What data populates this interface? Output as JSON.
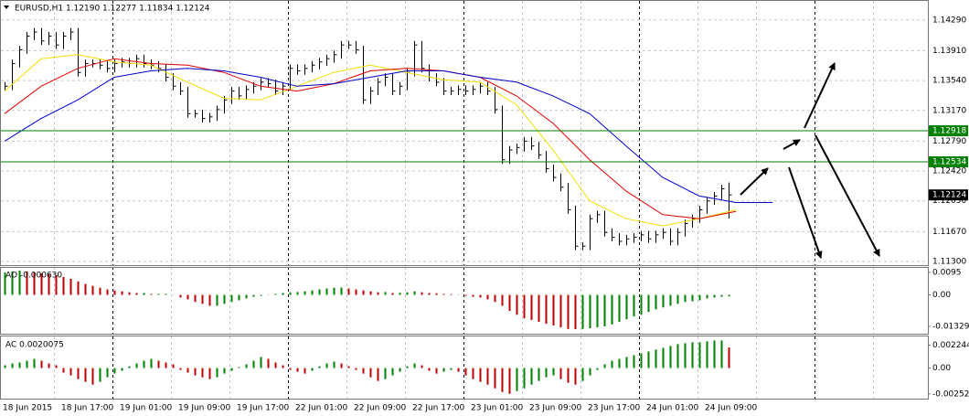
{
  "chart_data": [
    {
      "type": "ohlc",
      "title": "EURUSD,H1  1.12190 1.12277 1.11834 1.12124",
      "color": "#000000",
      "categories": [
        "18 Jun 2015",
        null,
        null,
        null,
        null,
        null,
        null,
        null,
        "18 Jun 17:00",
        null,
        null,
        null,
        null,
        null,
        null,
        null,
        "19 Jun 01:00",
        null,
        null,
        null,
        null,
        null,
        null,
        null,
        "19 Jun 09:00",
        null,
        null,
        null,
        null,
        null,
        null,
        null,
        "19 Jun 17:00",
        null,
        null,
        null,
        null,
        null,
        null,
        null,
        "22 Jun 01:00",
        null,
        null,
        null,
        null,
        null,
        null,
        null,
        "22 Jun 09:00",
        null,
        null,
        null,
        null,
        null,
        null,
        null,
        "22 Jun 17:00",
        null,
        null,
        null,
        null,
        null,
        null,
        null,
        "23 Jun 01:00",
        null,
        null,
        null,
        null,
        null,
        null,
        null,
        "23 Jun 09:00",
        null,
        null,
        null,
        null,
        null,
        null,
        null,
        "23 Jun 17:00",
        null,
        null,
        null,
        null,
        null,
        null,
        null,
        "24 Jun 01:00",
        null,
        null,
        null,
        null,
        null,
        null,
        null,
        "24 Jun 09:00",
        null,
        null,
        null
      ],
      "high": [
        1.1352,
        1.138,
        1.1397,
        1.1414,
        1.1419,
        1.1419,
        1.1414,
        1.1414,
        1.1414,
        1.1419,
        1.1419,
        1.138,
        1.138,
        1.138,
        1.1378,
        1.138,
        1.1382,
        1.1382,
        1.1386,
        1.1386,
        1.138,
        1.1378,
        1.1374,
        1.1363,
        1.1352,
        1.1346,
        1.1318,
        1.1318,
        1.1314,
        1.1323,
        1.1335,
        1.1346,
        1.1346,
        1.1348,
        1.1352,
        1.1357,
        1.1357,
        1.1355,
        1.1352,
        1.1374,
        1.1374,
        1.1374,
        1.1378,
        1.1382,
        1.1386,
        1.1391,
        1.1403,
        1.1403,
        1.1403,
        1.1397,
        1.1346,
        1.1357,
        1.1363,
        1.1363,
        1.1352,
        1.1369,
        1.1403,
        1.1403,
        1.1374,
        1.1363,
        1.1357,
        1.1346,
        1.1348,
        1.1348,
        1.1348,
        1.1352,
        1.1352,
        1.1346,
        1.1323,
        1.1273,
        1.1276,
        1.1284,
        1.1284,
        1.1278,
        1.1267,
        1.125,
        1.1239,
        1.1227,
        1.1199,
        1.1154,
        1.1188,
        1.1193,
        1.1193,
        1.1171,
        1.1165,
        1.1163,
        1.1165,
        1.1168,
        1.1168,
        1.1168,
        1.1171,
        1.1171,
        1.1171,
        1.1182,
        1.1188,
        1.1199,
        1.121,
        1.1216,
        1.1225,
        1.12277
      ],
      "low": [
        1.1342,
        1.1342,
        1.137,
        1.1387,
        1.1404,
        1.1398,
        1.1398,
        1.1393,
        1.1393,
        1.1404,
        1.1359,
        1.1359,
        1.137,
        1.1368,
        1.1364,
        1.1364,
        1.137,
        1.137,
        1.137,
        1.137,
        1.1368,
        1.1364,
        1.1353,
        1.1342,
        1.1336,
        1.1308,
        1.1308,
        1.1302,
        1.1302,
        1.1304,
        1.1313,
        1.1325,
        1.133,
        1.133,
        1.1338,
        1.1342,
        1.1345,
        1.1336,
        1.1336,
        1.1342,
        1.1361,
        1.1361,
        1.1364,
        1.1368,
        1.1372,
        1.1376,
        1.1381,
        1.1393,
        1.1387,
        1.1325,
        1.1325,
        1.1336,
        1.1347,
        1.1336,
        1.1336,
        1.1342,
        1.1359,
        1.1364,
        1.1353,
        1.1347,
        1.1336,
        1.1336,
        1.1336,
        1.1336,
        1.1336,
        1.1338,
        1.1336,
        1.1313,
        1.1251,
        1.1251,
        1.1263,
        1.1266,
        1.1268,
        1.1257,
        1.124,
        1.1229,
        1.1217,
        1.1189,
        1.1144,
        1.1144,
        1.1144,
        1.1178,
        1.1161,
        1.1155,
        1.115,
        1.115,
        1.1153,
        1.1155,
        1.1153,
        1.1153,
        1.1158,
        1.115,
        1.115,
        1.1161,
        1.1172,
        1.1178,
        1.1189,
        1.12,
        1.1206,
        1.11834
      ],
      "close": [
        1.1347,
        1.1375,
        1.1392,
        1.1409,
        1.1414,
        1.1403,
        1.1409,
        1.1398,
        1.1409,
        1.1414,
        1.1364,
        1.1375,
        1.1375,
        1.1373,
        1.1369,
        1.1375,
        1.1377,
        1.1375,
        1.1381,
        1.1375,
        1.1373,
        1.1369,
        1.1358,
        1.1347,
        1.1341,
        1.1313,
        1.1313,
        1.1307,
        1.1309,
        1.1318,
        1.133,
        1.1341,
        1.1335,
        1.1343,
        1.1347,
        1.1352,
        1.135,
        1.1341,
        1.1347,
        1.1369,
        1.1366,
        1.1369,
        1.1373,
        1.1377,
        1.1381,
        1.1386,
        1.1398,
        1.1398,
        1.1392,
        1.133,
        1.1341,
        1.1352,
        1.1358,
        1.1341,
        1.1347,
        1.1364,
        1.1398,
        1.1369,
        1.1358,
        1.1352,
        1.1341,
        1.1341,
        1.1343,
        1.1341,
        1.1343,
        1.1347,
        1.1341,
        1.1318,
        1.1256,
        1.1268,
        1.1271,
        1.1279,
        1.1273,
        1.1262,
        1.1245,
        1.1234,
        1.1222,
        1.1194,
        1.1149,
        1.1149,
        1.1183,
        1.1188,
        1.1166,
        1.116,
        1.1155,
        1.1158,
        1.116,
        1.1163,
        1.1158,
        1.1163,
        1.1166,
        1.1155,
        1.1166,
        1.1177,
        1.1183,
        1.1194,
        1.1205,
        1.1211,
        1.122,
        1.12124
      ],
      "lines": [
        {
          "color": "#f0e000",
          "x": [
            0,
            5,
            10,
            15,
            20,
            25,
            30,
            35,
            40,
            45,
            50,
            55,
            60,
            65,
            70,
            75,
            80,
            85,
            90,
            95,
            100
          ],
          "values": [
            1.1341,
            1.1381,
            1.1386,
            1.1377,
            1.1373,
            1.1352,
            1.1332,
            1.133,
            1.1347,
            1.1364,
            1.1373,
            1.1364,
            1.1355,
            1.1352,
            1.1324,
            1.1268,
            1.1205,
            1.1183,
            1.1174,
            1.1183,
            1.1194
          ]
        },
        {
          "color": "#e00000",
          "x": [
            0,
            5,
            10,
            15,
            20,
            25,
            30,
            35,
            40,
            45,
            50,
            55,
            60,
            65,
            70,
            75,
            80,
            85,
            90,
            95,
            100
          ],
          "values": [
            1.1313,
            1.1347,
            1.1369,
            1.1381,
            1.1375,
            1.1373,
            1.1364,
            1.1347,
            1.1341,
            1.135,
            1.1366,
            1.1369,
            1.1366,
            1.1358,
            1.1335,
            1.1301,
            1.1256,
            1.1217,
            1.1188,
            1.1183,
            1.1192
          ]
        },
        {
          "color": "#0000c8",
          "x": [
            0,
            5,
            10,
            15,
            20,
            25,
            30,
            35,
            40,
            45,
            50,
            55,
            60,
            65,
            70,
            75,
            80,
            85,
            90,
            95,
            100,
            105
          ],
          "values": [
            1.1279,
            1.1307,
            1.133,
            1.1358,
            1.1366,
            1.1369,
            1.1366,
            1.1358,
            1.1347,
            1.135,
            1.1358,
            1.1366,
            1.1366,
            1.1358,
            1.1352,
            1.1335,
            1.1313,
            1.1273,
            1.1234,
            1.1211,
            1.1203,
            1.1203
          ]
        }
      ],
      "levels": [
        {
          "value": 1.12918,
          "color": "#008000"
        },
        {
          "value": 1.12534,
          "color": "#008000"
        }
      ],
      "last_price": 1.12124,
      "ylim": [
        1.11255,
        1.14514
      ],
      "yticks": [
        {
          "value": 1.1429,
          "label": "1.14290"
        },
        {
          "value": 1.1391,
          "label": "1.13910"
        },
        {
          "value": 1.1354,
          "label": "1.13540"
        },
        {
          "value": 1.1317,
          "label": "1.13170"
        },
        {
          "value": 1.1279,
          "label": "1.12790"
        },
        {
          "value": 1.1242,
          "label": "1.12420"
        },
        {
          "value": 1.1205,
          "label": "1.12050"
        },
        {
          "value": 1.1167,
          "label": "1.11670"
        },
        {
          "value": 1.113,
          "label": "1.11300"
        }
      ],
      "grid": true
    },
    {
      "type": "bar",
      "title": "AO -0.000630",
      "up_color": "#008000",
      "down_color": "#c00000",
      "values": [
        0.0095,
        0.0099,
        0.0103,
        0.0099,
        0.0095,
        0.0091,
        0.0087,
        0.0084,
        0.0076,
        0.0068,
        0.0057,
        0.0046,
        0.0038,
        0.003,
        0.0023,
        0.0019,
        0.0015,
        0.0011,
        0.0008,
        0.0008,
        0.0004,
        0.0004,
        0.0004,
        0.0001,
        -0.0011,
        -0.0019,
        -0.003,
        -0.0038,
        -0.0046,
        -0.0046,
        -0.0038,
        -0.003,
        -0.0023,
        -0.0015,
        -0.0008,
        -0.0004,
        0.0001,
        0.0004,
        0.0008,
        0.0011,
        0.0012,
        0.0015,
        0.0019,
        0.0023,
        0.0027,
        0.003,
        0.0031,
        0.0027,
        0.0023,
        0.0019,
        0.0015,
        0.0011,
        0.0012,
        0.0008,
        0.0009,
        0.0011,
        0.0015,
        0.0011,
        0.0008,
        0.0007,
        0.0004,
        0.0003,
        0.0001,
        -0.0004,
        -0.0008,
        -0.0011,
        -0.0019,
        -0.003,
        -0.0046,
        -0.0068,
        -0.0084,
        -0.0099,
        -0.0106,
        -0.0114,
        -0.0122,
        -0.0129,
        -0.0137,
        -0.0144,
        -0.0145,
        -0.0144,
        -0.0141,
        -0.0137,
        -0.0133,
        -0.0125,
        -0.0114,
        -0.0103,
        -0.0091,
        -0.0084,
        -0.0072,
        -0.0061,
        -0.0053,
        -0.0046,
        -0.0038,
        -0.003,
        -0.0027,
        -0.0023,
        -0.0015,
        -0.0011,
        -0.0008,
        -0.00063
      ],
      "ylim": [
        -0.0164,
        0.0114
      ],
      "yticks": [
        0.0095,
        {
          "value": 0,
          "label": "0.00"
        },
        -0.013296
      ]
    },
    {
      "type": "bar",
      "title": "AC 0.0020075",
      "up_color": "#008000",
      "down_color": "#c00000",
      "values": [
        0.00027,
        0.00045,
        0.00054,
        0.00072,
        0.0009,
        0.00072,
        0.00045,
        0.00027,
        -0.00045,
        -0.00072,
        -0.00108,
        -0.00135,
        -0.00162,
        -0.00135,
        -0.0009,
        -0.00054,
        -0.00027,
        0.00018,
        0.00045,
        0.00072,
        0.0009,
        0.00072,
        0.00054,
        0.00036,
        -0.00018,
        -0.00045,
        -0.00072,
        -0.0009,
        -0.00108,
        -0.0009,
        -0.00054,
        -0.00027,
        9e-05,
        0.00036,
        0.00072,
        0.00108,
        0.0009,
        0.00054,
        0.00027,
        -0.00018,
        -0.00036,
        -0.00054,
        -0.00027,
        0.00018,
        0.00045,
        0.00063,
        0.00045,
        0.00018,
        -0.00018,
        -0.00054,
        -0.0009,
        -0.00126,
        -0.00108,
        -0.00072,
        -0.00036,
        0.00018,
        0.00045,
        0.00027,
        -0.00027,
        -0.00054,
        -0.00036,
        -0.00018,
        -0.00036,
        -0.00072,
        -0.00108,
        -0.00135,
        -0.00162,
        -0.00198,
        -0.00234,
        -0.00252,
        -0.00225,
        -0.00198,
        -0.00162,
        -0.00126,
        -0.0009,
        -0.00072,
        -0.00108,
        -0.00144,
        -0.00162,
        -0.00126,
        -0.00072,
        -0.00018,
        0.00036,
        0.00072,
        0.0009,
        0.00108,
        0.00126,
        0.00144,
        0.00162,
        0.0018,
        0.00198,
        0.00216,
        0.00234,
        0.00243,
        0.00252,
        0.00252,
        0.00261,
        0.0027,
        0.0027,
        0.0020075
      ],
      "ylim": [
        -0.0029,
        0.003
      ],
      "yticks": [
        0.002244,
        {
          "value": 0,
          "label": "0.00"
        },
        -0.002528
      ]
    }
  ]
}
